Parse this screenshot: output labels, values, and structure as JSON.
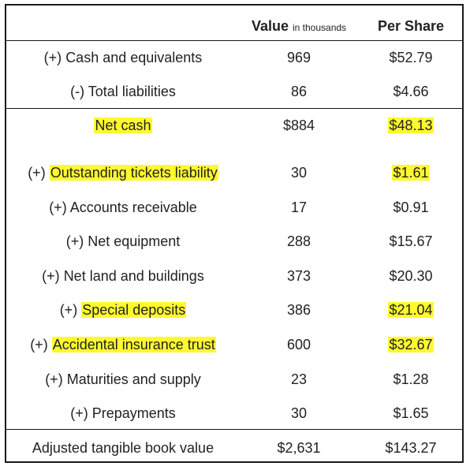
{
  "header": {
    "value_label": "Value",
    "value_unit": "in thousands",
    "per_share_label": "Per Share"
  },
  "rows": [
    {
      "sign": "(+)",
      "label": "Cash and equivalents",
      "value": "969",
      "per_share": "$52.79"
    },
    {
      "sign": "(-)",
      "label": "Total liabilities",
      "value": "86",
      "per_share": "$4.66"
    },
    {
      "sign": "",
      "label": "Net cash",
      "value": "$884",
      "per_share": "$48.13"
    },
    {
      "sign": "(+)",
      "label": "Outstanding tickets liability",
      "value": "30",
      "per_share": "$1.61"
    },
    {
      "sign": "(+)",
      "label": "Accounts receivable",
      "value": "17",
      "per_share": "$0.91"
    },
    {
      "sign": "(+)",
      "label": "Net equipment",
      "value": "288",
      "per_share": "$15.67"
    },
    {
      "sign": "(+)",
      "label": "Net land and buildings",
      "value": "373",
      "per_share": "$20.30"
    },
    {
      "sign": "(+)",
      "label": "Special deposits",
      "value": "386",
      "per_share": "$21.04"
    },
    {
      "sign": "(+)",
      "label": "Accidental insurance trust",
      "value": "600",
      "per_share": "$32.67"
    },
    {
      "sign": "(+)",
      "label": "Maturities and supply",
      "value": "23",
      "per_share": "$1.28"
    },
    {
      "sign": "(+)",
      "label": "Prepayments",
      "value": "30",
      "per_share": "$1.65"
    }
  ],
  "total": {
    "label": "Adjusted tangible book value",
    "value": "$2,631",
    "per_share": "$143.27"
  },
  "colors": {
    "highlight": "#fff92e",
    "border": "#1a1a1a"
  }
}
